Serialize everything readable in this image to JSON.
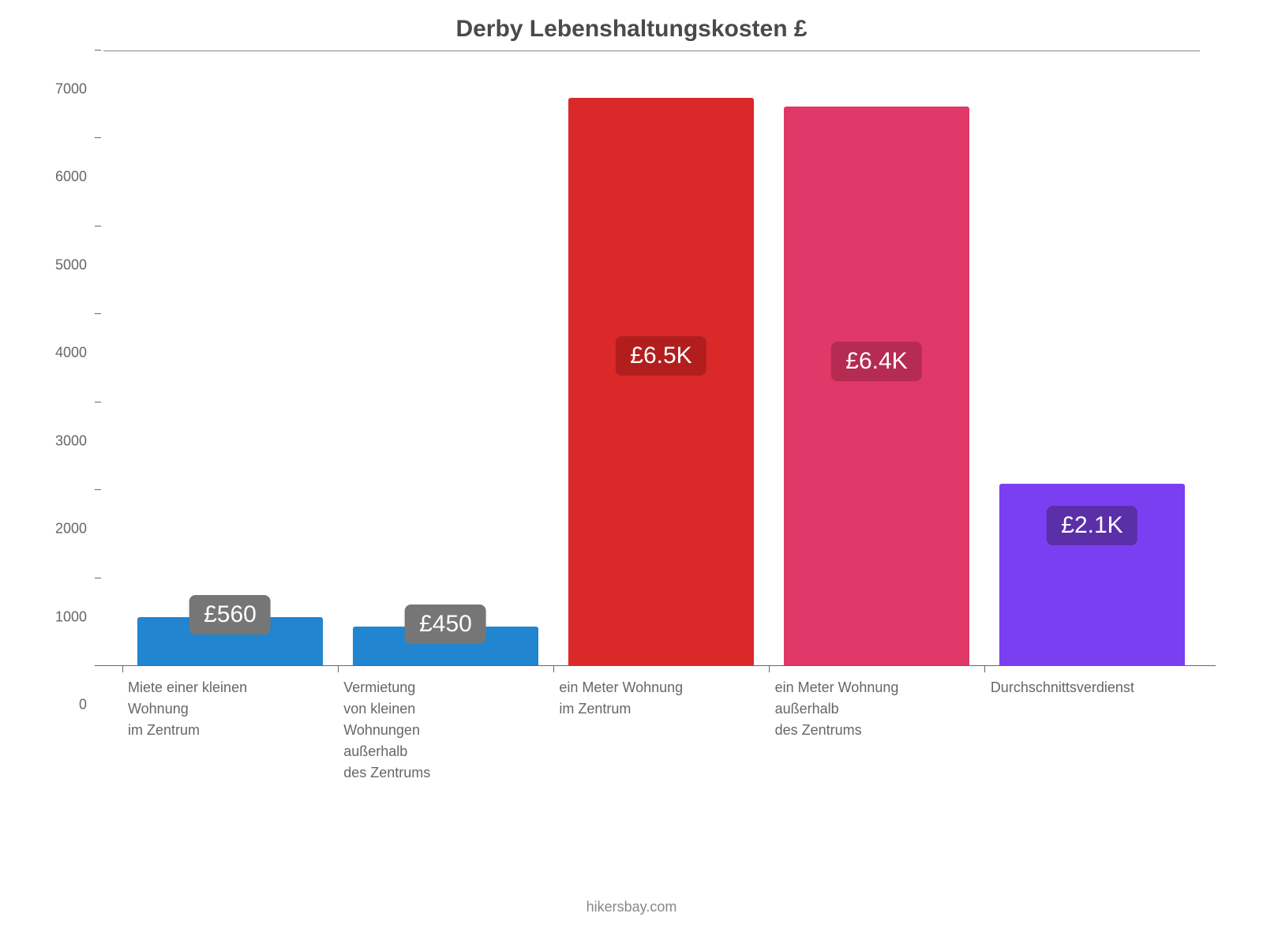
{
  "chart": {
    "type": "bar",
    "title": "Derby Lebenshaltungskosten £",
    "title_fontsize": 30,
    "title_color": "#4a4a4a",
    "background_color": "#ffffff",
    "y_axis": {
      "min": 0,
      "max": 7000,
      "tick_step": 1000,
      "ticks": [
        0,
        1000,
        2000,
        3000,
        4000,
        5000,
        6000,
        7000
      ],
      "label_fontsize": 18,
      "label_color": "#666666"
    },
    "x_axis": {
      "label_fontsize": 18,
      "label_color": "#666666"
    },
    "bar_width_ratio": 0.86,
    "categories": [
      {
        "label": "Miete einer kleinen\nWohnung\nim Zentrum",
        "value": 560,
        "value_label": "£560",
        "bar_color": "#2185d0",
        "badge_bg": "#767676",
        "badge_text_color": "#ffffff",
        "badge_position": "overlap-top"
      },
      {
        "label": "Vermietung\nvon kleinen\nWohnungen\naußerhalb\ndes Zentrums",
        "value": 450,
        "value_label": "£450",
        "bar_color": "#2185d0",
        "badge_bg": "#767676",
        "badge_text_color": "#ffffff",
        "badge_position": "overlap-top"
      },
      {
        "label": "ein Meter Wohnung\nim Zentrum",
        "value": 6460,
        "value_label": "£6.5K",
        "bar_color": "#db2828",
        "badge_bg": "#b21e1e",
        "badge_text_color": "#ffffff",
        "badge_position": "inside-mid"
      },
      {
        "label": "ein Meter Wohnung\naußerhalb\ndes Zentrums",
        "value": 6360,
        "value_label": "£6.4K",
        "bar_color": "#e03868",
        "badge_bg": "#b52b52",
        "badge_text_color": "#ffffff",
        "badge_position": "inside-mid"
      },
      {
        "label": "Durchschnittsverdienst",
        "value": 2070,
        "value_label": "£2.1K",
        "bar_color": "#7b3ff2",
        "badge_bg": "#5a2fa8",
        "badge_text_color": "#ffffff",
        "badge_position": "inside-top"
      }
    ],
    "attribution": "hikersbay.com",
    "attribution_color": "#888888",
    "attribution_fontsize": 18
  }
}
